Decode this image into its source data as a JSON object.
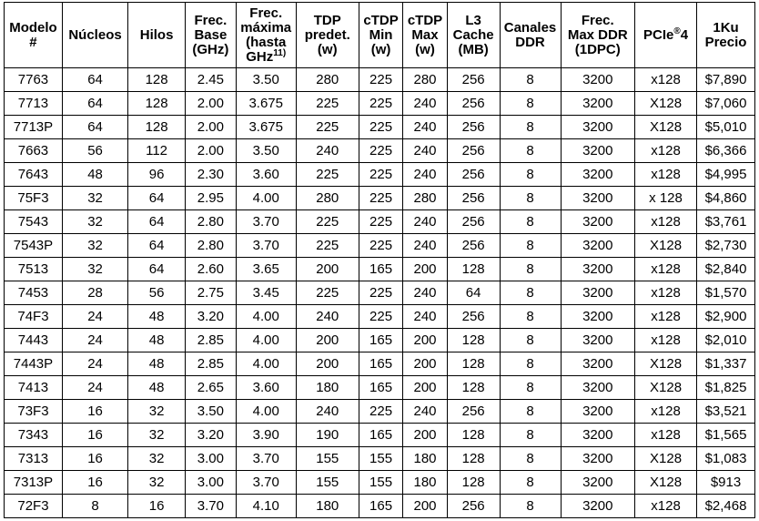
{
  "headers": [
    [
      "Modelo",
      "#"
    ],
    [
      "Núcleos"
    ],
    [
      "Hilos"
    ],
    [
      "Frec.",
      "Base",
      "(GHz)"
    ],
    [
      "Frec.",
      "máxima",
      "(hasta",
      "GHz"
    ],
    [
      "TDP",
      "predet.",
      "(w)"
    ],
    [
      "cTDP",
      "Min",
      "(w)"
    ],
    [
      "cTDP",
      "Max",
      "(w)"
    ],
    [
      "L3",
      "Cache",
      "(MB)"
    ],
    [
      "Canales",
      "DDR"
    ],
    [
      "Frec.",
      "Max DDR",
      "(1DPC)"
    ],
    [
      "PCIe",
      "4"
    ],
    [
      "1Ku",
      "Precio"
    ]
  ],
  "header_sup": {
    "max_freq": "11)",
    "pcie": "®"
  },
  "rows": [
    [
      "7763",
      "64",
      "128",
      "2.45",
      "3.50",
      "280",
      "225",
      "280",
      "256",
      "8",
      "3200",
      "x128",
      "$7,890"
    ],
    [
      "7713",
      "64",
      "128",
      "2.00",
      "3.675",
      "225",
      "225",
      "240",
      "256",
      "8",
      "3200",
      "X128",
      "$7,060"
    ],
    [
      "7713P",
      "64",
      "128",
      "2.00",
      "3.675",
      "225",
      "225",
      "240",
      "256",
      "8",
      "3200",
      "X128",
      "$5,010"
    ],
    [
      "7663",
      "56",
      "112",
      "2.00",
      "3.50",
      "240",
      "225",
      "240",
      "256",
      "8",
      "3200",
      "x128",
      "$6,366"
    ],
    [
      "7643",
      "48",
      "96",
      "2.30",
      "3.60",
      "225",
      "225",
      "240",
      "256",
      "8",
      "3200",
      "x128",
      "$4,995"
    ],
    [
      "75F3",
      "32",
      "64",
      "2.95",
      "4.00",
      "280",
      "225",
      "280",
      "256",
      "8",
      "3200",
      "x 128",
      "$4,860"
    ],
    [
      "7543",
      "32",
      "64",
      "2.80",
      "3.70",
      "225",
      "225",
      "240",
      "256",
      "8",
      "3200",
      "x128",
      "$3,761"
    ],
    [
      "7543P",
      "32",
      "64",
      "2.80",
      "3.70",
      "225",
      "225",
      "240",
      "256",
      "8",
      "3200",
      "X128",
      "$2,730"
    ],
    [
      "7513",
      "32",
      "64",
      "2.60",
      "3.65",
      "200",
      "165",
      "200",
      "128",
      "8",
      "3200",
      "x128",
      "$2,840"
    ],
    [
      "7453",
      "28",
      "56",
      "2.75",
      "3.45",
      "225",
      "225",
      "240",
      "64",
      "8",
      "3200",
      "x128",
      "$1,570"
    ],
    [
      "74F3",
      "24",
      "48",
      "3.20",
      "4.00",
      "240",
      "225",
      "240",
      "256",
      "8",
      "3200",
      "x128",
      "$2,900"
    ],
    [
      "7443",
      "24",
      "48",
      "2.85",
      "4.00",
      "200",
      "165",
      "200",
      "128",
      "8",
      "3200",
      "x128",
      "$2,010"
    ],
    [
      "7443P",
      "24",
      "48",
      "2.85",
      "4.00",
      "200",
      "165",
      "200",
      "128",
      "8",
      "3200",
      "X128",
      "$1,337"
    ],
    [
      "7413",
      "24",
      "48",
      "2.65",
      "3.60",
      "180",
      "165",
      "200",
      "128",
      "8",
      "3200",
      "X128",
      "$1,825"
    ],
    [
      "73F3",
      "16",
      "32",
      "3.50",
      "4.00",
      "240",
      "225",
      "240",
      "256",
      "8",
      "3200",
      "x128",
      "$3,521"
    ],
    [
      "7343",
      "16",
      "32",
      "3.20",
      "3.90",
      "190",
      "165",
      "200",
      "128",
      "8",
      "3200",
      "x128",
      "$1,565"
    ],
    [
      "7313",
      "16",
      "32",
      "3.00",
      "3.70",
      "155",
      "155",
      "180",
      "128",
      "8",
      "3200",
      "X128",
      "$1,083"
    ],
    [
      "7313P",
      "16",
      "32",
      "3.00",
      "3.70",
      "155",
      "155",
      "180",
      "128",
      "8",
      "3200",
      "X128",
      "$913"
    ],
    [
      "72F3",
      "8",
      "16",
      "3.70",
      "4.10",
      "180",
      "165",
      "200",
      "256",
      "8",
      "3200",
      "x128",
      "$2,468"
    ]
  ]
}
